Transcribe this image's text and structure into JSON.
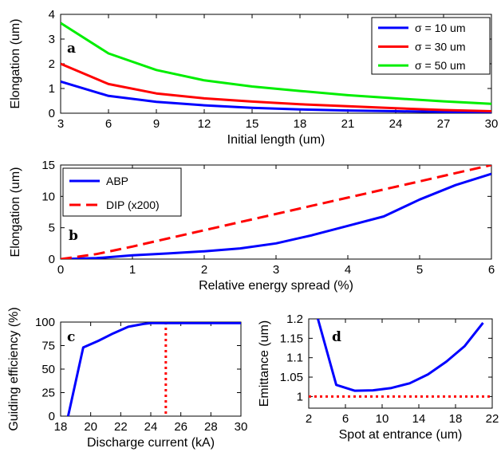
{
  "chart_data": [
    {
      "id": "a",
      "type": "line",
      "panel_label": "a",
      "xlabel": "Initial length (um)",
      "ylabel": "Elongation (um)",
      "xlim": [
        3,
        30
      ],
      "ylim": [
        0,
        4
      ],
      "xticks": [
        3,
        6,
        9,
        12,
        15,
        18,
        21,
        24,
        27,
        30
      ],
      "yticks": [
        0,
        1,
        2,
        3,
        4
      ],
      "legend": "top-right",
      "x": [
        3,
        6,
        9,
        12,
        15,
        18,
        21,
        24,
        27,
        30
      ],
      "series": [
        {
          "name": "σ = 10 um",
          "color": "#0000ff",
          "dash": "solid",
          "values": [
            1.28,
            0.7,
            0.46,
            0.32,
            0.22,
            0.15,
            0.11,
            0.08,
            0.05,
            0.03
          ]
        },
        {
          "name": "σ = 30 um",
          "color": "#ff0000",
          "dash": "solid",
          "values": [
            2.0,
            1.18,
            0.8,
            0.6,
            0.47,
            0.36,
            0.28,
            0.2,
            0.13,
            0.08
          ]
        },
        {
          "name": "σ = 50 um",
          "color": "#00ee00",
          "dash": "solid",
          "values": [
            3.65,
            2.42,
            1.75,
            1.33,
            1.08,
            0.9,
            0.73,
            0.6,
            0.48,
            0.38
          ]
        }
      ]
    },
    {
      "id": "b",
      "type": "line",
      "panel_label": "b",
      "xlabel": "Relative energy spread (%)",
      "ylabel": "Elongation (um)",
      "xlim": [
        0,
        6
      ],
      "ylim": [
        0,
        15
      ],
      "xticks": [
        0,
        1,
        2,
        3,
        4,
        5,
        6
      ],
      "yticks": [
        0,
        5,
        10,
        15
      ],
      "legend": "top-left",
      "series": [
        {
          "name": "ABP",
          "color": "#0000ff",
          "dash": "solid",
          "x": [
            0,
            0.5,
            1,
            1.5,
            2,
            2.5,
            3,
            3.5,
            4,
            4.5,
            5,
            5.5,
            6
          ],
          "values": [
            0,
            0.15,
            0.6,
            0.9,
            1.25,
            1.7,
            2.5,
            3.8,
            5.3,
            6.8,
            9.5,
            11.8,
            13.6
          ]
        },
        {
          "name": "DIP (x200)",
          "color": "#ff0000",
          "dash": "dashed",
          "x": [
            0,
            0.5,
            1,
            1.5,
            2,
            2.5,
            3,
            3.5,
            4,
            4.5,
            5,
            5.5,
            6
          ],
          "values": [
            0,
            0.8,
            2.0,
            3.3,
            4.6,
            5.9,
            7.2,
            8.5,
            9.8,
            11.1,
            12.4,
            13.7,
            15.0
          ]
        }
      ]
    },
    {
      "id": "c",
      "type": "line",
      "panel_label": "c",
      "xlabel": "Discharge current (kA)",
      "ylabel": "Guiding efficiency (%)",
      "xlim": [
        18,
        30
      ],
      "ylim": [
        0,
        100
      ],
      "xticks": [
        18,
        20,
        22,
        24,
        26,
        28,
        30
      ],
      "yticks": [
        0,
        25,
        50,
        75,
        100
      ],
      "series": [
        {
          "name": "",
          "color": "#0000ff",
          "dash": "solid",
          "x": [
            18.5,
            19.5,
            20.5,
            21.5,
            22.5,
            23.5,
            24,
            25,
            26,
            27,
            28,
            29,
            30
          ],
          "values": [
            0,
            73,
            80,
            88,
            95,
            98,
            99,
            99,
            99,
            99,
            99,
            99,
            99
          ]
        }
      ],
      "vline": {
        "x": 25,
        "color": "#ff0000",
        "dash": "dotted"
      }
    },
    {
      "id": "d",
      "type": "line",
      "panel_label": "d",
      "xlabel": "Spot at entrance (um)",
      "ylabel": "Emittance (um)",
      "xlim": [
        2,
        22
      ],
      "ylim": [
        0.97,
        1.2
      ],
      "xticks": [
        2,
        6,
        10,
        14,
        18,
        22
      ],
      "xticklabels": [
        "2",
        "6",
        "10",
        "14",
        "18",
        "22"
      ],
      "yticks": [
        1,
        1.05,
        1.1,
        1.15,
        1.2
      ],
      "series": [
        {
          "name": "",
          "color": "#0000ff",
          "dash": "solid",
          "x": [
            3,
            5,
            7,
            9,
            11,
            13,
            15,
            17,
            19,
            21
          ],
          "values": [
            1.2,
            1.03,
            1.015,
            1.016,
            1.022,
            1.034,
            1.057,
            1.09,
            1.13,
            1.19
          ]
        }
      ],
      "hline": {
        "y": 1.0,
        "color": "#ff0000",
        "dash": "dotted"
      }
    }
  ],
  "tick_formats": {
    "c_y": [
      "0",
      "25",
      "50",
      "75",
      "100"
    ],
    "d_y": [
      "1",
      "1.05",
      "1.1",
      "1.15",
      "1.2"
    ]
  }
}
